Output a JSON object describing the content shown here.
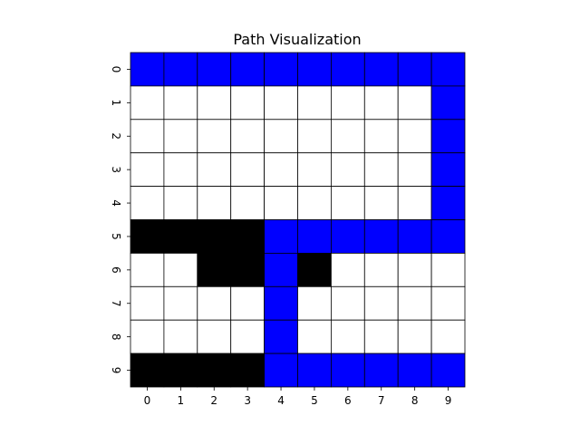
{
  "chart_data": {
    "type": "heatmap",
    "title": "Path Visualization",
    "xlabel": "",
    "ylabel": "",
    "x_ticks": [
      "0",
      "1",
      "2",
      "3",
      "4",
      "5",
      "6",
      "7",
      "8",
      "9"
    ],
    "y_ticks": [
      "0",
      "1",
      "2",
      "3",
      "4",
      "5",
      "6",
      "7",
      "8",
      "9"
    ],
    "grid": true,
    "legend": "none",
    "categories": {
      "0": {
        "meaning": "empty",
        "color": "#ffffff"
      },
      "1": {
        "meaning": "obstacle",
        "color": "#000000"
      },
      "2": {
        "meaning": "path",
        "color": "#0000ff"
      }
    },
    "cells": [
      [
        2,
        2,
        2,
        2,
        2,
        2,
        2,
        2,
        2,
        2
      ],
      [
        0,
        0,
        0,
        0,
        0,
        0,
        0,
        0,
        0,
        2
      ],
      [
        0,
        0,
        0,
        0,
        0,
        0,
        0,
        0,
        0,
        2
      ],
      [
        0,
        0,
        0,
        0,
        0,
        0,
        0,
        0,
        0,
        2
      ],
      [
        0,
        0,
        0,
        0,
        0,
        0,
        0,
        0,
        0,
        2
      ],
      [
        1,
        1,
        1,
        1,
        2,
        2,
        2,
        2,
        2,
        2
      ],
      [
        0,
        0,
        1,
        1,
        2,
        1,
        0,
        0,
        0,
        0
      ],
      [
        0,
        0,
        0,
        0,
        2,
        0,
        0,
        0,
        0,
        0
      ],
      [
        0,
        0,
        0,
        0,
        2,
        0,
        0,
        0,
        0,
        0
      ],
      [
        1,
        1,
        1,
        1,
        2,
        2,
        2,
        2,
        2,
        2
      ]
    ]
  }
}
